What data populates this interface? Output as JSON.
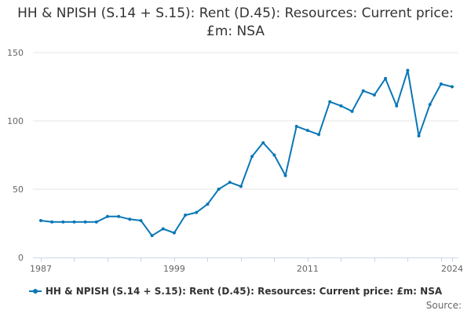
{
  "chart_data": {
    "type": "line",
    "title": "HH & NPISH (S.14 + S.15): Rent (D.45): Resources: Current price: £m: NSA",
    "xlabel": "",
    "ylabel": "",
    "x": [
      1987,
      1988,
      1989,
      1990,
      1991,
      1992,
      1993,
      1994,
      1995,
      1996,
      1997,
      1998,
      1999,
      2000,
      2001,
      2002,
      2003,
      2004,
      2005,
      2006,
      2007,
      2008,
      2009,
      2010,
      2011,
      2012,
      2013,
      2014,
      2015,
      2016,
      2017,
      2018,
      2019,
      2020,
      2021,
      2022,
      2023,
      2024
    ],
    "series": [
      {
        "name": "HH & NPISH (S.14 + S.15): Rent (D.45): Resources: Current price: £m: NSA",
        "values": [
          27,
          26,
          26,
          26,
          26,
          26,
          30,
          30,
          28,
          27,
          16,
          21,
          18,
          31,
          33,
          39,
          50,
          55,
          52,
          74,
          84,
          75,
          60,
          96,
          93,
          90,
          114,
          111,
          107,
          122,
          119,
          131,
          111,
          137,
          89,
          112,
          127,
          125
        ]
      }
    ],
    "xticks": [
      "1987",
      "1999",
      "2011",
      "2024"
    ],
    "xtick_values": [
      1987,
      1999,
      2011,
      2024
    ],
    "yticks": [
      "0",
      "50",
      "100",
      "150"
    ],
    "ytick_values": [
      0,
      50,
      100,
      150
    ],
    "xlim": [
      1987,
      2024
    ],
    "ylim": [
      0,
      150
    ],
    "grid": "horizontal",
    "legend_position": "bottom",
    "line_color": "#0a77b6",
    "grid_color": "#e6e6e6"
  },
  "source_label": "Source:"
}
